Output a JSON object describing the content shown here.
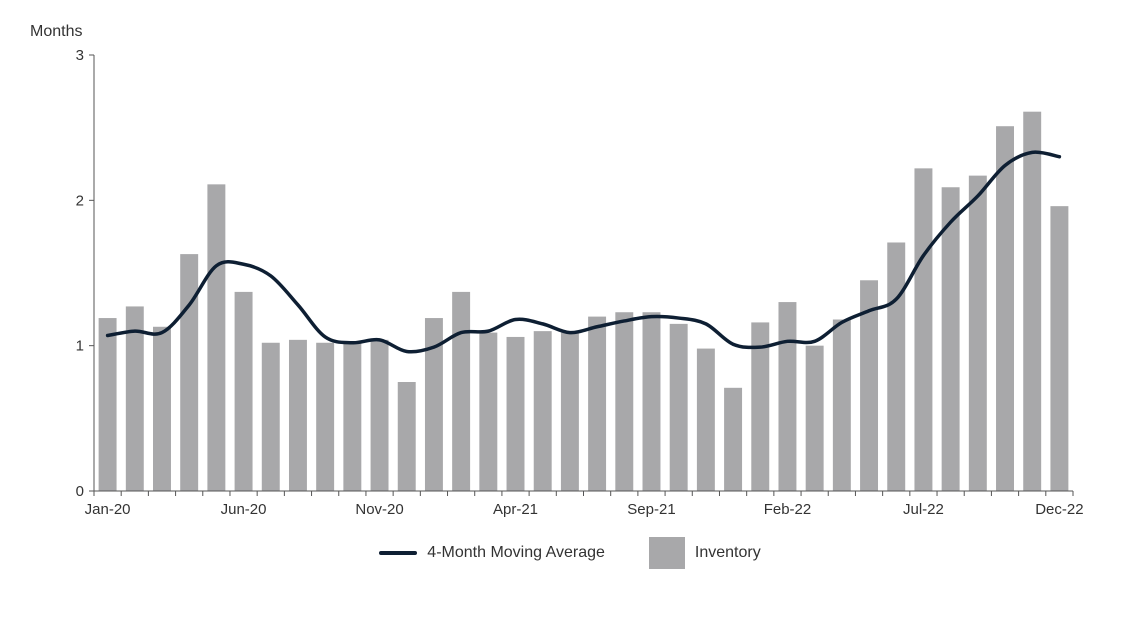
{
  "chart_data": {
    "type": "bar",
    "ylabel": "Months",
    "ylim": [
      0,
      3
    ],
    "yticks": [
      0,
      1,
      2,
      3
    ],
    "categories": [
      "Jan-20",
      "Feb-20",
      "Mar-20",
      "Apr-20",
      "May-20",
      "Jun-20",
      "Jul-20",
      "Aug-20",
      "Sep-20",
      "Oct-20",
      "Nov-20",
      "Dec-20",
      "Jan-21",
      "Feb-21",
      "Mar-21",
      "Apr-21",
      "May-21",
      "Jun-21",
      "Jul-21",
      "Aug-21",
      "Sep-21",
      "Oct-21",
      "Nov-21",
      "Dec-21",
      "Jan-22",
      "Feb-22",
      "Mar-22",
      "Apr-22",
      "May-22",
      "Jun-22",
      "Jul-22",
      "Aug-22",
      "Sep-22",
      "Oct-22",
      "Nov-22",
      "Dec-22"
    ],
    "xtick_labels": [
      {
        "category": "Jan-20",
        "label": "Jan-20"
      },
      {
        "category": "Jun-20",
        "label": "Jun-20"
      },
      {
        "category": "Nov-20",
        "label": "Nov-20"
      },
      {
        "category": "Apr-21",
        "label": "Apr-21"
      },
      {
        "category": "Sep-21",
        "label": "Sep-21"
      },
      {
        "category": "Feb-22",
        "label": "Feb-22"
      },
      {
        "category": "Jul-22",
        "label": "Jul-22"
      },
      {
        "category": "Dec-22",
        "label": "Dec-22"
      }
    ],
    "series": [
      {
        "name": "Inventory",
        "kind": "bar",
        "color": "#a8a8aa",
        "values": [
          1.19,
          1.27,
          1.13,
          1.63,
          2.11,
          1.37,
          1.02,
          1.04,
          1.02,
          1.03,
          1.04,
          0.75,
          1.19,
          1.37,
          1.09,
          1.06,
          1.1,
          1.09,
          1.2,
          1.23,
          1.23,
          1.15,
          0.98,
          0.71,
          1.16,
          1.3,
          1.0,
          1.18,
          1.45,
          1.71,
          2.22,
          2.09,
          2.17,
          2.51,
          2.61,
          1.96
        ]
      },
      {
        "name": "4-Month Moving Average",
        "kind": "line",
        "color": "#0e1f33",
        "values": [
          1.07,
          1.1,
          1.09,
          1.28,
          1.55,
          1.56,
          1.48,
          1.28,
          1.06,
          1.02,
          1.04,
          0.96,
          0.99,
          1.09,
          1.1,
          1.18,
          1.15,
          1.09,
          1.13,
          1.17,
          1.2,
          1.19,
          1.15,
          1.01,
          0.99,
          1.03,
          1.03,
          1.16,
          1.24,
          1.32,
          1.62,
          1.85,
          2.03,
          2.24,
          2.33,
          2.3
        ]
      }
    ],
    "grid": false,
    "legend_position": "bottom-center"
  },
  "legend": {
    "line_label": "4-Month Moving Average",
    "bar_label": "Inventory",
    "line_color": "#0e1f33",
    "bar_color": "#a8a8aa"
  }
}
